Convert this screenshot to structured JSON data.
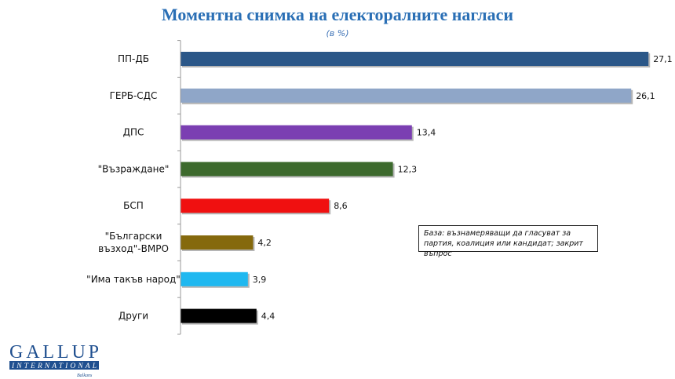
{
  "chart_data": {
    "type": "bar",
    "orientation": "horizontal",
    "title": "Моментна снимка на електоралните нагласи",
    "subtitle": "(в %)",
    "categories": [
      "ПП-ДБ",
      "ГЕРБ-СДС",
      "ДПС",
      "\"Възраждане\"",
      "БСП",
      "\"Български възход\"-ВМРО",
      "\"Има такъв народ\"",
      "Други"
    ],
    "category_lines": [
      [
        "ПП-ДБ"
      ],
      [
        "ГЕРБ-СДС"
      ],
      [
        "ДПС"
      ],
      [
        "\"Възраждане\""
      ],
      [
        "БСП"
      ],
      [
        "\"Български",
        "възход\"-ВМРО"
      ],
      [
        "\"Има такъв народ\""
      ],
      [
        "Други"
      ]
    ],
    "values": [
      27.1,
      26.1,
      13.4,
      12.3,
      8.6,
      4.2,
      3.9,
      4.4
    ],
    "value_labels": [
      "27,1",
      "26,1",
      "13,4",
      "12,3",
      "8,6",
      "4,2",
      "3,9",
      "4,4"
    ],
    "colors": [
      "#2b5788",
      "#8fa6c8",
      "#7b3fb2",
      "#3d6a2d",
      "#f01010",
      "#85690d",
      "#1fb8f0",
      "#000000"
    ],
    "xlim": [
      0,
      28.5
    ],
    "grid": false,
    "legend": "none"
  },
  "note": "База: възнамеряващи да гласуват за партия, коалиция или кандидат; закрит въпрос",
  "logo": {
    "line1": "GALLUP",
    "line2": "INTERNATIONAL",
    "line3": "Balkans"
  }
}
